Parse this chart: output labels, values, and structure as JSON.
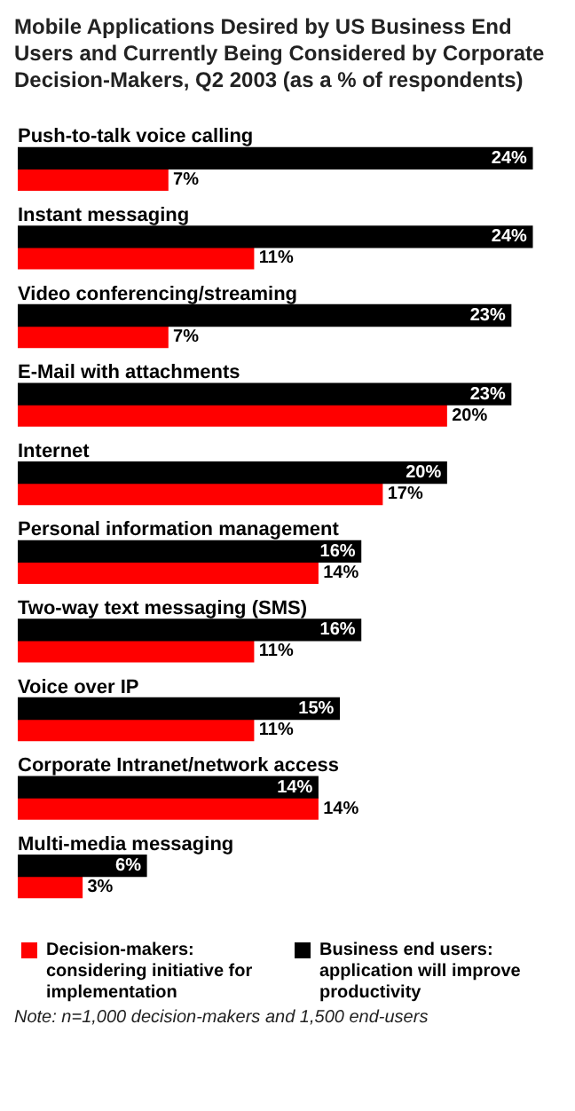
{
  "chart_data": {
    "type": "bar",
    "orientation": "horizontal",
    "title": "Mobile Applications Desired by US Business End Users and Currently Being Considered by Corporate Decision-Makers, Q2 2003 (as a % of respondents)",
    "categories": [
      "Push-to-talk voice calling",
      "Instant messaging",
      "Video conferencing/streaming",
      "E-Mail with attachments",
      "Internet",
      "Personal information management",
      "Two-way text messaging (SMS)",
      "Voice over IP",
      "Corporate Intranet/network access",
      "Multi-media messaging"
    ],
    "series": [
      {
        "name": "Business end users: application will improve productivity",
        "color": "#000000",
        "values": [
          24,
          24,
          23,
          23,
          20,
          16,
          16,
          15,
          14,
          6
        ],
        "value_labels": [
          "24%",
          "24%",
          "23%",
          "23%",
          "20%",
          "16%",
          "16%",
          "15%",
          "14%",
          "6%"
        ]
      },
      {
        "name": "Decision-makers: considering initiative for implementation",
        "color": "#ff0000",
        "values": [
          7,
          11,
          7,
          20,
          17,
          14,
          11,
          11,
          14,
          3
        ],
        "value_labels": [
          "7%",
          "11%",
          "7%",
          "20%",
          "17%",
          "14%",
          "11%",
          "11%",
          "14%",
          "3%"
        ]
      }
    ],
    "legend": "bottom",
    "annotations": [
      "Note: n=1,000 decision-makers and 1,500 end-users"
    ]
  }
}
